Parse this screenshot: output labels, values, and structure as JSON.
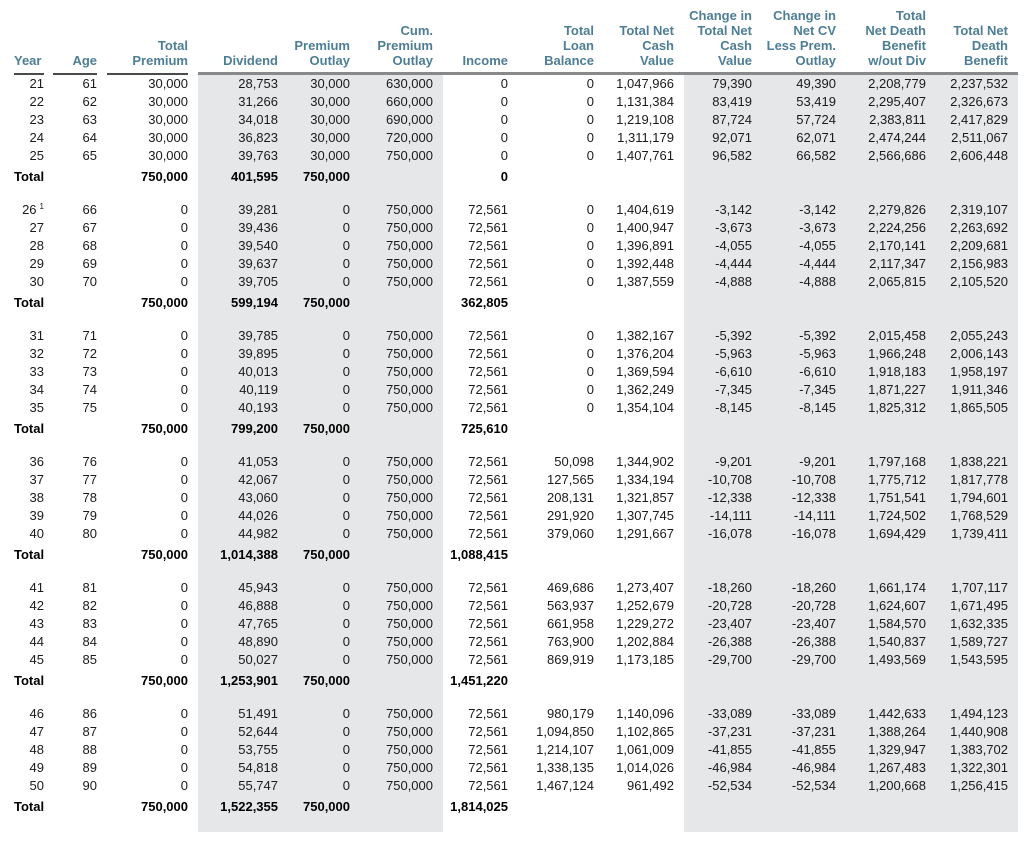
{
  "colors": {
    "header_text": "#4d7e95",
    "band": "#e6e7e8",
    "rule_dark": "#4a4a4c",
    "rule_gray": "#87898b",
    "body_text": "#1a1a1a"
  },
  "table": {
    "shaded_columns": [
      3,
      4,
      5,
      9,
      10,
      11,
      12
    ],
    "footnotes": {
      "26": "1"
    },
    "columns": [
      {
        "id": "year",
        "label": "Year"
      },
      {
        "id": "age",
        "label": "Age"
      },
      {
        "id": "total_premium",
        "label": "Total\nPremium"
      },
      {
        "id": "dividend",
        "label": "Dividend"
      },
      {
        "id": "premium_outlay",
        "label": "Premium\nOutlay"
      },
      {
        "id": "cum_premium_outlay",
        "label": "Cum.\nPremium\nOutlay"
      },
      {
        "id": "income",
        "label": "Income"
      },
      {
        "id": "total_loan_balance",
        "label": "Total\nLoan\nBalance"
      },
      {
        "id": "total_net_cash_value",
        "label": "Total Net\nCash\nValue"
      },
      {
        "id": "change_total_net_cash_value",
        "label": "Change in\nTotal Net\nCash Value"
      },
      {
        "id": "change_net_cv_less_prem_outlay",
        "label": "Change in\nNet CV\nLess Prem.\nOutlay"
      },
      {
        "id": "total_net_death_benefit_wout_div",
        "label": "Total\nNet Death\nBenefit\nw/out Div"
      },
      {
        "id": "total_net_death_benefit",
        "label": "Total Net\nDeath\nBenefit"
      }
    ],
    "blocks": [
      {
        "rows": [
          [
            "21",
            "61",
            "30,000",
            "28,753",
            "30,000",
            "630,000",
            "0",
            "0",
            "1,047,966",
            "79,390",
            "49,390",
            "2,208,779",
            "2,237,532"
          ],
          [
            "22",
            "62",
            "30,000",
            "31,266",
            "30,000",
            "660,000",
            "0",
            "0",
            "1,131,384",
            "83,419",
            "53,419",
            "2,295,407",
            "2,326,673"
          ],
          [
            "23",
            "63",
            "30,000",
            "34,018",
            "30,000",
            "690,000",
            "0",
            "0",
            "1,219,108",
            "87,724",
            "57,724",
            "2,383,811",
            "2,417,829"
          ],
          [
            "24",
            "64",
            "30,000",
            "36,823",
            "30,000",
            "720,000",
            "0",
            "0",
            "1,311,179",
            "92,071",
            "62,071",
            "2,474,244",
            "2,511,067"
          ],
          [
            "25",
            "65",
            "30,000",
            "39,763",
            "30,000",
            "750,000",
            "0",
            "0",
            "1,407,761",
            "96,582",
            "66,582",
            "2,566,686",
            "2,606,448"
          ]
        ],
        "total": [
          "Total",
          "",
          "750,000",
          "401,595",
          "750,000",
          "",
          "0",
          "",
          "",
          "",
          "",
          "",
          ""
        ]
      },
      {
        "rows": [
          [
            "26",
            "66",
            "0",
            "39,281",
            "0",
            "750,000",
            "72,561",
            "0",
            "1,404,619",
            "-3,142",
            "-3,142",
            "2,279,826",
            "2,319,107"
          ],
          [
            "27",
            "67",
            "0",
            "39,436",
            "0",
            "750,000",
            "72,561",
            "0",
            "1,400,947",
            "-3,673",
            "-3,673",
            "2,224,256",
            "2,263,692"
          ],
          [
            "28",
            "68",
            "0",
            "39,540",
            "0",
            "750,000",
            "72,561",
            "0",
            "1,396,891",
            "-4,055",
            "-4,055",
            "2,170,141",
            "2,209,681"
          ],
          [
            "29",
            "69",
            "0",
            "39,637",
            "0",
            "750,000",
            "72,561",
            "0",
            "1,392,448",
            "-4,444",
            "-4,444",
            "2,117,347",
            "2,156,983"
          ],
          [
            "30",
            "70",
            "0",
            "39,705",
            "0",
            "750,000",
            "72,561",
            "0",
            "1,387,559",
            "-4,888",
            "-4,888",
            "2,065,815",
            "2,105,520"
          ]
        ],
        "total": [
          "Total",
          "",
          "750,000",
          "599,194",
          "750,000",
          "",
          "362,805",
          "",
          "",
          "",
          "",
          "",
          ""
        ]
      },
      {
        "rows": [
          [
            "31",
            "71",
            "0",
            "39,785",
            "0",
            "750,000",
            "72,561",
            "0",
            "1,382,167",
            "-5,392",
            "-5,392",
            "2,015,458",
            "2,055,243"
          ],
          [
            "32",
            "72",
            "0",
            "39,895",
            "0",
            "750,000",
            "72,561",
            "0",
            "1,376,204",
            "-5,963",
            "-5,963",
            "1,966,248",
            "2,006,143"
          ],
          [
            "33",
            "73",
            "0",
            "40,013",
            "0",
            "750,000",
            "72,561",
            "0",
            "1,369,594",
            "-6,610",
            "-6,610",
            "1,918,183",
            "1,958,197"
          ],
          [
            "34",
            "74",
            "0",
            "40,119",
            "0",
            "750,000",
            "72,561",
            "0",
            "1,362,249",
            "-7,345",
            "-7,345",
            "1,871,227",
            "1,911,346"
          ],
          [
            "35",
            "75",
            "0",
            "40,193",
            "0",
            "750,000",
            "72,561",
            "0",
            "1,354,104",
            "-8,145",
            "-8,145",
            "1,825,312",
            "1,865,505"
          ]
        ],
        "total": [
          "Total",
          "",
          "750,000",
          "799,200",
          "750,000",
          "",
          "725,610",
          "",
          "",
          "",
          "",
          "",
          ""
        ]
      },
      {
        "rows": [
          [
            "36",
            "76",
            "0",
            "41,053",
            "0",
            "750,000",
            "72,561",
            "50,098",
            "1,344,902",
            "-9,201",
            "-9,201",
            "1,797,168",
            "1,838,221"
          ],
          [
            "37",
            "77",
            "0",
            "42,067",
            "0",
            "750,000",
            "72,561",
            "127,565",
            "1,334,194",
            "-10,708",
            "-10,708",
            "1,775,712",
            "1,817,778"
          ],
          [
            "38",
            "78",
            "0",
            "43,060",
            "0",
            "750,000",
            "72,561",
            "208,131",
            "1,321,857",
            "-12,338",
            "-12,338",
            "1,751,541",
            "1,794,601"
          ],
          [
            "39",
            "79",
            "0",
            "44,026",
            "0",
            "750,000",
            "72,561",
            "291,920",
            "1,307,745",
            "-14,111",
            "-14,111",
            "1,724,502",
            "1,768,529"
          ],
          [
            "40",
            "80",
            "0",
            "44,982",
            "0",
            "750,000",
            "72,561",
            "379,060",
            "1,291,667",
            "-16,078",
            "-16,078",
            "1,694,429",
            "1,739,411"
          ]
        ],
        "total": [
          "Total",
          "",
          "750,000",
          "1,014,388",
          "750,000",
          "",
          "1,088,415",
          "",
          "",
          "",
          "",
          "",
          ""
        ]
      },
      {
        "rows": [
          [
            "41",
            "81",
            "0",
            "45,943",
            "0",
            "750,000",
            "72,561",
            "469,686",
            "1,273,407",
            "-18,260",
            "-18,260",
            "1,661,174",
            "1,707,117"
          ],
          [
            "42",
            "82",
            "0",
            "46,888",
            "0",
            "750,000",
            "72,561",
            "563,937",
            "1,252,679",
            "-20,728",
            "-20,728",
            "1,624,607",
            "1,671,495"
          ],
          [
            "43",
            "83",
            "0",
            "47,765",
            "0",
            "750,000",
            "72,561",
            "661,958",
            "1,229,272",
            "-23,407",
            "-23,407",
            "1,584,570",
            "1,632,335"
          ],
          [
            "44",
            "84",
            "0",
            "48,890",
            "0",
            "750,000",
            "72,561",
            "763,900",
            "1,202,884",
            "-26,388",
            "-26,388",
            "1,540,837",
            "1,589,727"
          ],
          [
            "45",
            "85",
            "0",
            "50,027",
            "0",
            "750,000",
            "72,561",
            "869,919",
            "1,173,185",
            "-29,700",
            "-29,700",
            "1,493,569",
            "1,543,595"
          ]
        ],
        "total": [
          "Total",
          "",
          "750,000",
          "1,253,901",
          "750,000",
          "",
          "1,451,220",
          "",
          "",
          "",
          "",
          "",
          ""
        ]
      },
      {
        "rows": [
          [
            "46",
            "86",
            "0",
            "51,491",
            "0",
            "750,000",
            "72,561",
            "980,179",
            "1,140,096",
            "-33,089",
            "-33,089",
            "1,442,633",
            "1,494,123"
          ],
          [
            "47",
            "87",
            "0",
            "52,644",
            "0",
            "750,000",
            "72,561",
            "1,094,850",
            "1,102,865",
            "-37,231",
            "-37,231",
            "1,388,264",
            "1,440,908"
          ],
          [
            "48",
            "88",
            "0",
            "53,755",
            "0",
            "750,000",
            "72,561",
            "1,214,107",
            "1,061,009",
            "-41,855",
            "-41,855",
            "1,329,947",
            "1,383,702"
          ],
          [
            "49",
            "89",
            "0",
            "54,818",
            "0",
            "750,000",
            "72,561",
            "1,338,135",
            "1,014,026",
            "-46,984",
            "-46,984",
            "1,267,483",
            "1,322,301"
          ],
          [
            "50",
            "90",
            "0",
            "55,747",
            "0",
            "750,000",
            "72,561",
            "1,467,124",
            "961,492",
            "-52,534",
            "-52,534",
            "1,200,668",
            "1,256,415"
          ]
        ],
        "total": [
          "Total",
          "",
          "750,000",
          "1,522,355",
          "750,000",
          "",
          "1,814,025",
          "",
          "",
          "",
          "",
          "",
          ""
        ]
      }
    ]
  }
}
